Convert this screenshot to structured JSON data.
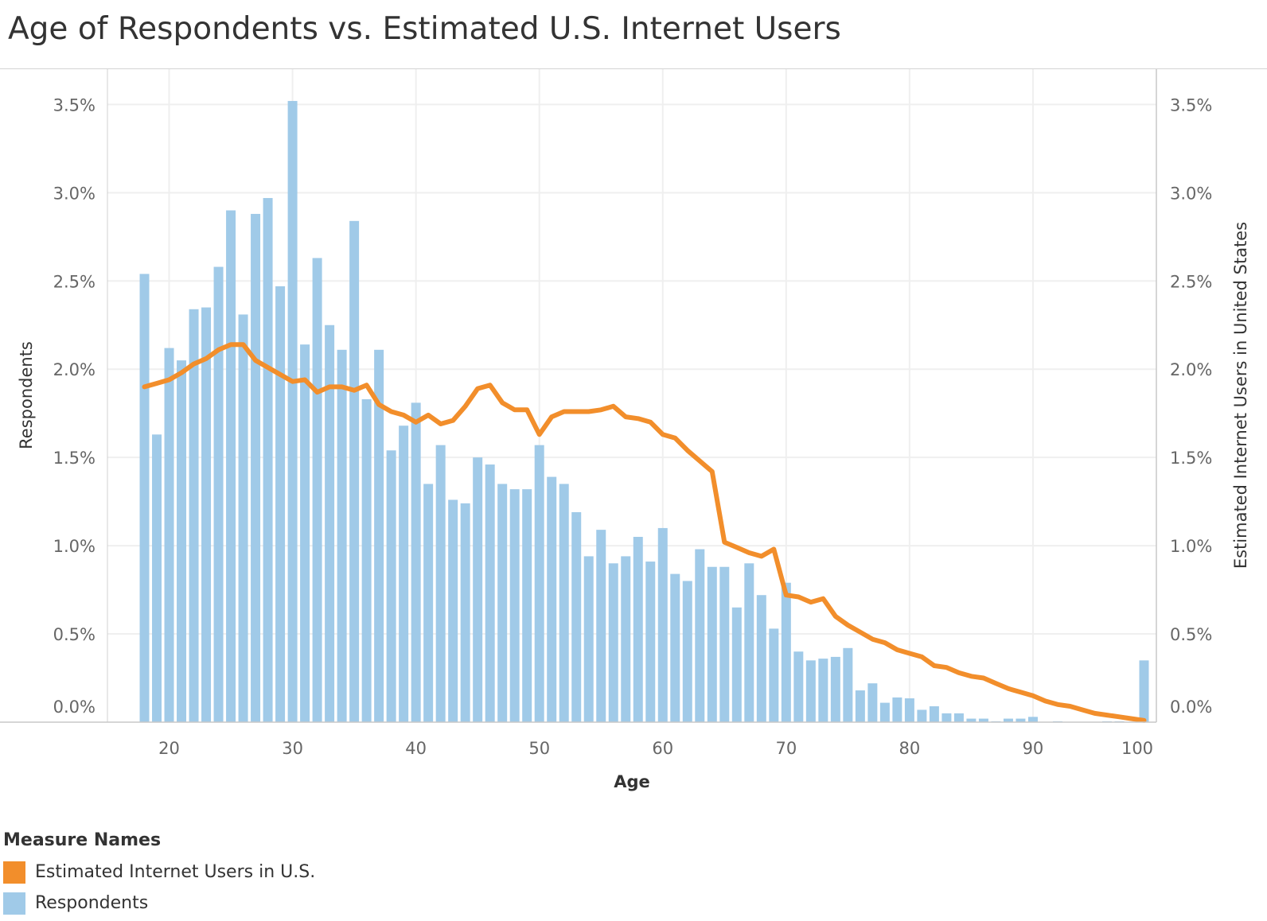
{
  "title": "Age of Respondents vs. Estimated U.S. Internet Users",
  "legend": {
    "title": "Measure Names",
    "items": [
      {
        "label": "Estimated Internet Users in U.S.",
        "color": "#f28e2b"
      },
      {
        "label": "Respondents",
        "color": "#a0cae8"
      }
    ]
  },
  "chart_data": {
    "type": "bar+line",
    "title": "Age of Respondents vs. Estimated U.S. Internet Users",
    "xlabel": "Age",
    "ylabel": "Respondents",
    "y2label": "Estimated Internet Users in United States",
    "xlim": [
      15,
      100
    ],
    "ylim": [
      0,
      3.7
    ],
    "xticks": [
      "20",
      "30",
      "40",
      "50",
      "60",
      "70",
      "80",
      "90",
      "100"
    ],
    "yticks": [
      "0.0%",
      "0.5%",
      "1.0%",
      "1.5%",
      "2.0%",
      "2.5%",
      "3.0%",
      "3.5%"
    ],
    "grid": true,
    "legend_position": "bottom-left",
    "x": [
      18,
      19,
      20,
      21,
      22,
      23,
      24,
      25,
      26,
      27,
      28,
      29,
      30,
      31,
      32,
      33,
      34,
      35,
      36,
      37,
      38,
      39,
      40,
      41,
      42,
      43,
      44,
      45,
      46,
      47,
      48,
      49,
      50,
      51,
      52,
      53,
      54,
      55,
      56,
      57,
      58,
      59,
      60,
      61,
      62,
      63,
      64,
      65,
      66,
      67,
      68,
      69,
      70,
      71,
      72,
      73,
      74,
      75,
      76,
      77,
      78,
      79,
      80,
      81,
      82,
      83,
      84,
      85,
      86,
      87,
      88,
      89,
      90,
      91,
      92,
      93,
      94,
      95,
      96,
      97,
      98,
      99
    ],
    "series": [
      {
        "name": "Respondents",
        "type": "bar",
        "color": "#a0cae8",
        "values": [
          2.54,
          1.63,
          2.12,
          2.05,
          2.34,
          2.35,
          2.58,
          2.9,
          2.31,
          2.88,
          2.97,
          2.47,
          3.52,
          2.14,
          2.63,
          2.25,
          2.11,
          2.84,
          1.83,
          2.11,
          1.54,
          1.68,
          1.81,
          1.35,
          1.57,
          1.26,
          1.24,
          1.5,
          1.46,
          1.35,
          1.32,
          1.32,
          1.57,
          1.39,
          1.35,
          1.19,
          0.94,
          1.09,
          0.9,
          0.94,
          1.05,
          0.91,
          1.1,
          0.84,
          0.8,
          0.98,
          0.88,
          0.88,
          0.65,
          0.9,
          0.72,
          0.53,
          0.79,
          0.4,
          0.35,
          0.36,
          0.37,
          0.42,
          0.18,
          0.22,
          0.11,
          0.14,
          0.135,
          0.07,
          0.09,
          0.05,
          0.05,
          0.02,
          0.02,
          0.005,
          0.02,
          0.02,
          0.03,
          0,
          0.005,
          0,
          0,
          0,
          0.005,
          0.005,
          0,
          0.35
        ]
      },
      {
        "name": "Estimated Internet Users in U.S.",
        "type": "line",
        "color": "#f28e2b",
        "values": [
          1.9,
          1.92,
          1.94,
          1.98,
          2.03,
          2.06,
          2.11,
          2.14,
          2.14,
          2.05,
          2.01,
          1.97,
          1.93,
          1.94,
          1.87,
          1.9,
          1.9,
          1.88,
          1.91,
          1.8,
          1.76,
          1.74,
          1.7,
          1.74,
          1.69,
          1.71,
          1.79,
          1.89,
          1.91,
          1.81,
          1.77,
          1.77,
          1.63,
          1.73,
          1.76,
          1.76,
          1.76,
          1.77,
          1.79,
          1.73,
          1.72,
          1.7,
          1.63,
          1.61,
          1.54,
          1.48,
          1.42,
          1.02,
          0.99,
          0.96,
          0.94,
          0.98,
          0.72,
          0.71,
          0.68,
          0.7,
          0.6,
          0.55,
          0.51,
          0.47,
          0.45,
          0.41,
          0.39,
          0.37,
          0.32,
          0.31,
          0.28,
          0.26,
          0.25,
          0.22,
          0.19,
          0.17,
          0.15,
          0.12,
          0.1,
          0.09,
          0.07,
          0.05,
          0.04,
          0.03,
          0.02,
          0.01
        ]
      }
    ]
  }
}
